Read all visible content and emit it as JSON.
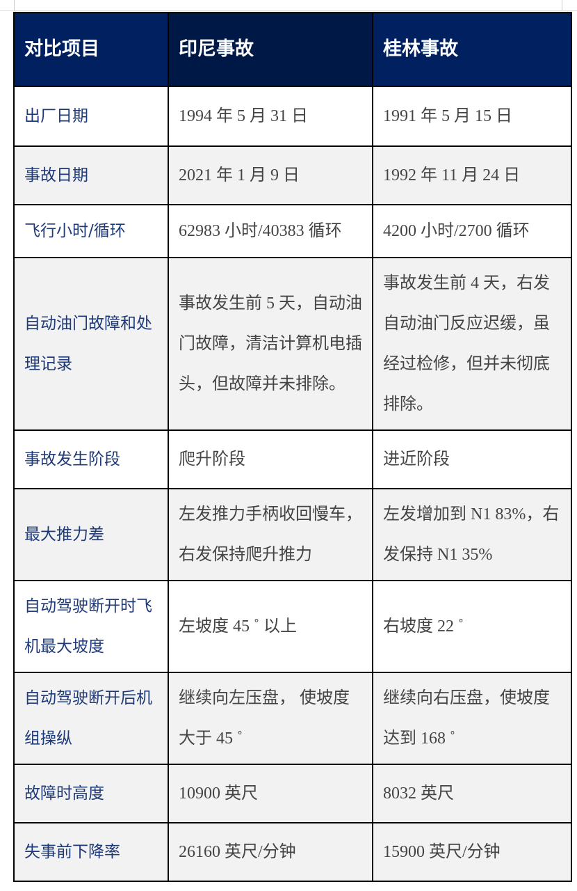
{
  "header": [
    "对比项目",
    "印尼事故",
    "桂林事故"
  ],
  "rows": [
    {
      "item": "出厂日期",
      "indonesia": "1994 年 5 月 31 日",
      "guilin": "1991 年 5 月 15 日"
    },
    {
      "item": "事故日期",
      "indonesia": "2021 年 1 月 9 日",
      "guilin": "1992 年 11 月 24 日"
    },
    {
      "item": "飞行小时/循环",
      "indonesia": "62983 小时/40383 循环",
      "guilin": "4200 小时/2700 循环"
    },
    {
      "item": "自动油门故障和处理记录",
      "indonesia": "事故发生前 5 天，自动油门故障，清洁计算机电插头，但故障并未排除。",
      "guilin": "事故发生前 4 天，右发自动油门反应迟缓，虽经过检修，但并未彻底排除。"
    },
    {
      "item": "事故发生阶段",
      "indonesia": "爬升阶段",
      "guilin": "进近阶段"
    },
    {
      "item": "最大推力差",
      "indonesia": "左发推力手柄收回慢车，右发保持爬升推力",
      "guilin": "左发增加到 N1 83%，右发保持 N1 35%"
    },
    {
      "item": "自动驾驶断开时飞机最大坡度",
      "indonesia": "左坡度 45 ˚ 以上",
      "guilin": "右坡度 22 ˚"
    },
    {
      "item": "自动驾驶断开后机组操纵",
      "indonesia": "继续向左压盘， 使坡度大于 45 ˚",
      "guilin": "继续向右压盘，使坡度达到 168 ˚"
    },
    {
      "item": "故障时高度",
      "indonesia": "10900 英尺",
      "guilin": "8032 英尺"
    },
    {
      "item": "失事前下降率",
      "indonesia": "26160 英尺/分钟",
      "guilin": "15900 英尺/分钟"
    }
  ]
}
